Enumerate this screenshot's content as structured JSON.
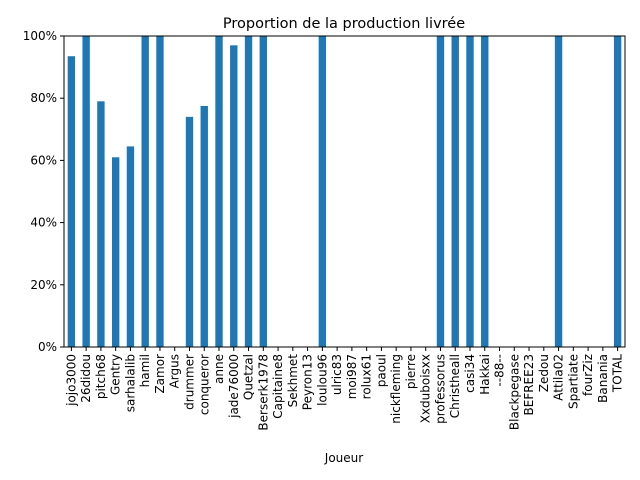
{
  "chart_data": {
    "type": "bar",
    "title": "Proportion de la production livrée",
    "xlabel": "Joueur",
    "ylabel": "",
    "ylim": [
      0,
      1
    ],
    "y_ticks": [
      0,
      0.2,
      0.4,
      0.6,
      0.8,
      1.0
    ],
    "y_tick_labels": [
      "0%",
      "20%",
      "40%",
      "60%",
      "80%",
      "100%"
    ],
    "grid": false,
    "bar_color": "#1f77b4",
    "categories": [
      "jojo3000",
      "26didou",
      "pitch68",
      "Gentry",
      "sarhalalib",
      "hamil",
      "Zamor",
      "Argus",
      "drummer",
      "conqueror",
      "anne",
      "jade76000",
      "Quetzal",
      "Berserk1978",
      "Capitaine8",
      "Sekhmet",
      "Peyron13",
      "loulou96",
      "ulric83",
      "moi987",
      "rolux61",
      "paoul",
      "nickfleming",
      "pierre",
      "Xxduboisxx",
      "professorus",
      "Christheall",
      "casi34",
      "Hakkai",
      "--88--",
      "Blackpegase",
      "BEFREE23",
      "Zedou",
      "Attila02",
      "Spartiate",
      "fourZiz",
      "Banania",
      "TOTAL"
    ],
    "values": [
      0.935,
      1.0,
      0.79,
      0.61,
      0.645,
      1.0,
      1.0,
      0,
      0.74,
      0.775,
      1.0,
      0.97,
      1.0,
      1.0,
      0,
      0,
      0,
      1.0,
      0,
      0,
      0,
      0,
      0,
      0,
      0,
      1.0,
      1.0,
      1.0,
      1.0,
      0,
      0,
      0,
      0,
      1.0,
      0,
      0,
      0,
      1.0
    ]
  }
}
